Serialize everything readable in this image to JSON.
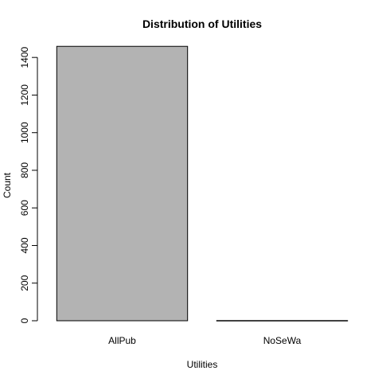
{
  "chart_data": {
    "type": "bar",
    "title": "Distribution of Utilities",
    "xlabel": "Utilities",
    "ylabel": "Count",
    "categories": [
      "AllPub",
      "NoSeWa"
    ],
    "values": [
      1459,
      1
    ],
    "ylim": [
      0,
      1460
    ],
    "yticks": [
      0,
      200,
      400,
      600,
      800,
      1000,
      1200,
      1400
    ],
    "bar_fill": "#b3b3b3",
    "bar_stroke": "#000000",
    "grid": false,
    "legend": "none"
  }
}
